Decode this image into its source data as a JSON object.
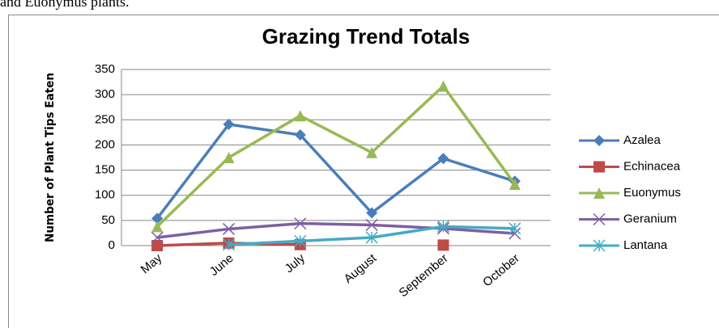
{
  "caption": "and Euonymus plants.",
  "chart_data": {
    "type": "line",
    "title": "Grazing Trend Totals",
    "y_label": "Number of Plant Tips Eaten",
    "categories": [
      "May",
      "June",
      "July",
      "August",
      "September",
      "October"
    ],
    "series": [
      {
        "name": "Azalea",
        "color": "#4a7ebb",
        "marker": "diamond",
        "values": [
          54,
          241,
          220,
          65,
          173,
          128
        ]
      },
      {
        "name": "Echinacea",
        "color": "#be4b48",
        "marker": "square",
        "values": [
          0,
          5,
          2,
          null,
          1,
          null
        ]
      },
      {
        "name": "Euonymus",
        "color": "#98b954",
        "marker": "triangle",
        "values": [
          38,
          175,
          258,
          185,
          317,
          122
        ]
      },
      {
        "name": "Geranium",
        "color": "#7d60a0",
        "marker": "x",
        "values": [
          16,
          33,
          44,
          41,
          34,
          24
        ]
      },
      {
        "name": "Lantana",
        "color": "#46aac5",
        "marker": "star",
        "values": [
          null,
          2,
          9,
          16,
          38,
          34
        ]
      }
    ],
    "ylim": [
      0,
      350
    ],
    "yticks": [
      0,
      50,
      100,
      150,
      200,
      250,
      300,
      350
    ],
    "grid": true,
    "legend": "right"
  }
}
